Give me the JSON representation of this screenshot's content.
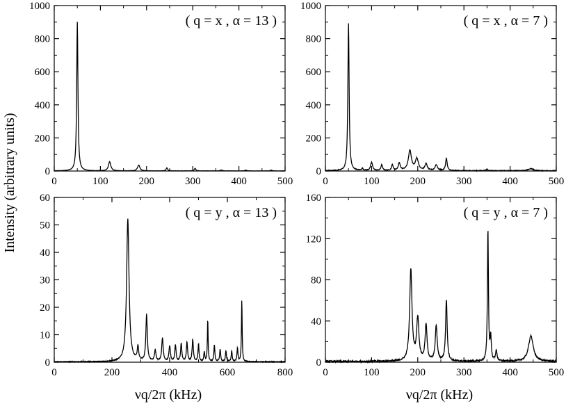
{
  "figure": {
    "ylabel": "Intensity (arbitrary units)",
    "xlabel": "νq/2π (kHz)"
  },
  "chart_data": [
    {
      "type": "line",
      "annotation": "( q = x , α = 13 )",
      "xlim": [
        0,
        500
      ],
      "ylim": [
        0,
        1000
      ],
      "xticks": [
        0,
        100,
        200,
        300,
        400,
        500
      ],
      "yticks": [
        0,
        200,
        400,
        600,
        800,
        1000
      ],
      "grid": false,
      "peaks": [
        {
          "x": 50,
          "y": 900,
          "w": 1.6
        },
        {
          "x": 120,
          "y": 55,
          "w": 3
        },
        {
          "x": 183,
          "y": 35,
          "w": 3
        },
        {
          "x": 244,
          "y": 18,
          "w": 2
        },
        {
          "x": 305,
          "y": 15,
          "w": 2
        },
        {
          "x": 362,
          "y": 6,
          "w": 2
        },
        {
          "x": 415,
          "y": 5,
          "w": 2
        },
        {
          "x": 470,
          "y": 5,
          "w": 2
        }
      ],
      "noise": 1.5
    },
    {
      "type": "line",
      "annotation": "( q = x , α = 7 )",
      "xlim": [
        0,
        500
      ],
      "ylim": [
        0,
        1000
      ],
      "xticks": [
        0,
        100,
        200,
        300,
        400,
        500
      ],
      "yticks": [
        0,
        200,
        400,
        600,
        800,
        1000
      ],
      "grid": false,
      "peaks": [
        {
          "x": 50,
          "y": 890,
          "w": 1.6
        },
        {
          "x": 80,
          "y": 12,
          "w": 2
        },
        {
          "x": 100,
          "y": 50,
          "w": 2.5
        },
        {
          "x": 122,
          "y": 35,
          "w": 2
        },
        {
          "x": 145,
          "y": 35,
          "w": 2
        },
        {
          "x": 160,
          "y": 45,
          "w": 2.5
        },
        {
          "x": 183,
          "y": 120,
          "w": 4
        },
        {
          "x": 198,
          "y": 70,
          "w": 4
        },
        {
          "x": 218,
          "y": 40,
          "w": 3
        },
        {
          "x": 240,
          "y": 35,
          "w": 3
        },
        {
          "x": 262,
          "y": 75,
          "w": 2
        },
        {
          "x": 350,
          "y": 8,
          "w": 2
        },
        {
          "x": 445,
          "y": 12,
          "w": 6
        }
      ],
      "noise": 4
    },
    {
      "type": "line",
      "annotation": "( q = y , α = 13 )",
      "xlim": [
        0,
        800
      ],
      "ylim": [
        0,
        60
      ],
      "xticks": [
        0,
        200,
        400,
        600,
        800
      ],
      "yticks": [
        0,
        10,
        20,
        30,
        40,
        50,
        60
      ],
      "grid": false,
      "peaks": [
        {
          "x": 255,
          "y": 52,
          "w": 5
        },
        {
          "x": 290,
          "y": 5,
          "w": 3
        },
        {
          "x": 320,
          "y": 17,
          "w": 3
        },
        {
          "x": 350,
          "y": 4,
          "w": 3
        },
        {
          "x": 375,
          "y": 8.5,
          "w": 3
        },
        {
          "x": 400,
          "y": 5.5,
          "w": 3
        },
        {
          "x": 420,
          "y": 6,
          "w": 2.5
        },
        {
          "x": 440,
          "y": 6.5,
          "w": 2.5
        },
        {
          "x": 460,
          "y": 7,
          "w": 2.5
        },
        {
          "x": 480,
          "y": 8,
          "w": 2.5
        },
        {
          "x": 500,
          "y": 6.5,
          "w": 2
        },
        {
          "x": 520,
          "y": 3.5,
          "w": 2
        },
        {
          "x": 532,
          "y": 15.5,
          "w": 1.5
        },
        {
          "x": 555,
          "y": 6,
          "w": 2
        },
        {
          "x": 575,
          "y": 4.5,
          "w": 2
        },
        {
          "x": 595,
          "y": 4,
          "w": 2
        },
        {
          "x": 615,
          "y": 4,
          "w": 2
        },
        {
          "x": 635,
          "y": 5,
          "w": 2
        },
        {
          "x": 650,
          "y": 22.5,
          "w": 1.5
        }
      ],
      "noise": 0.3
    },
    {
      "type": "line",
      "annotation": "( q = y , α = 7 )",
      "xlim": [
        0,
        500
      ],
      "ylim": [
        0,
        160
      ],
      "xticks": [
        0,
        100,
        200,
        300,
        400,
        500
      ],
      "yticks": [
        0,
        40,
        80,
        120,
        160
      ],
      "grid": false,
      "peaks": [
        {
          "x": 185,
          "y": 89,
          "w": 3
        },
        {
          "x": 200,
          "y": 41,
          "w": 3
        },
        {
          "x": 218,
          "y": 35,
          "w": 2.5
        },
        {
          "x": 240,
          "y": 34,
          "w": 2.5
        },
        {
          "x": 262,
          "y": 60,
          "w": 2
        },
        {
          "x": 352,
          "y": 129,
          "w": 1.3
        },
        {
          "x": 358,
          "y": 23,
          "w": 1.5
        },
        {
          "x": 370,
          "y": 10,
          "w": 2
        },
        {
          "x": 445,
          "y": 25,
          "w": 6
        }
      ],
      "noise": 1.5
    }
  ]
}
